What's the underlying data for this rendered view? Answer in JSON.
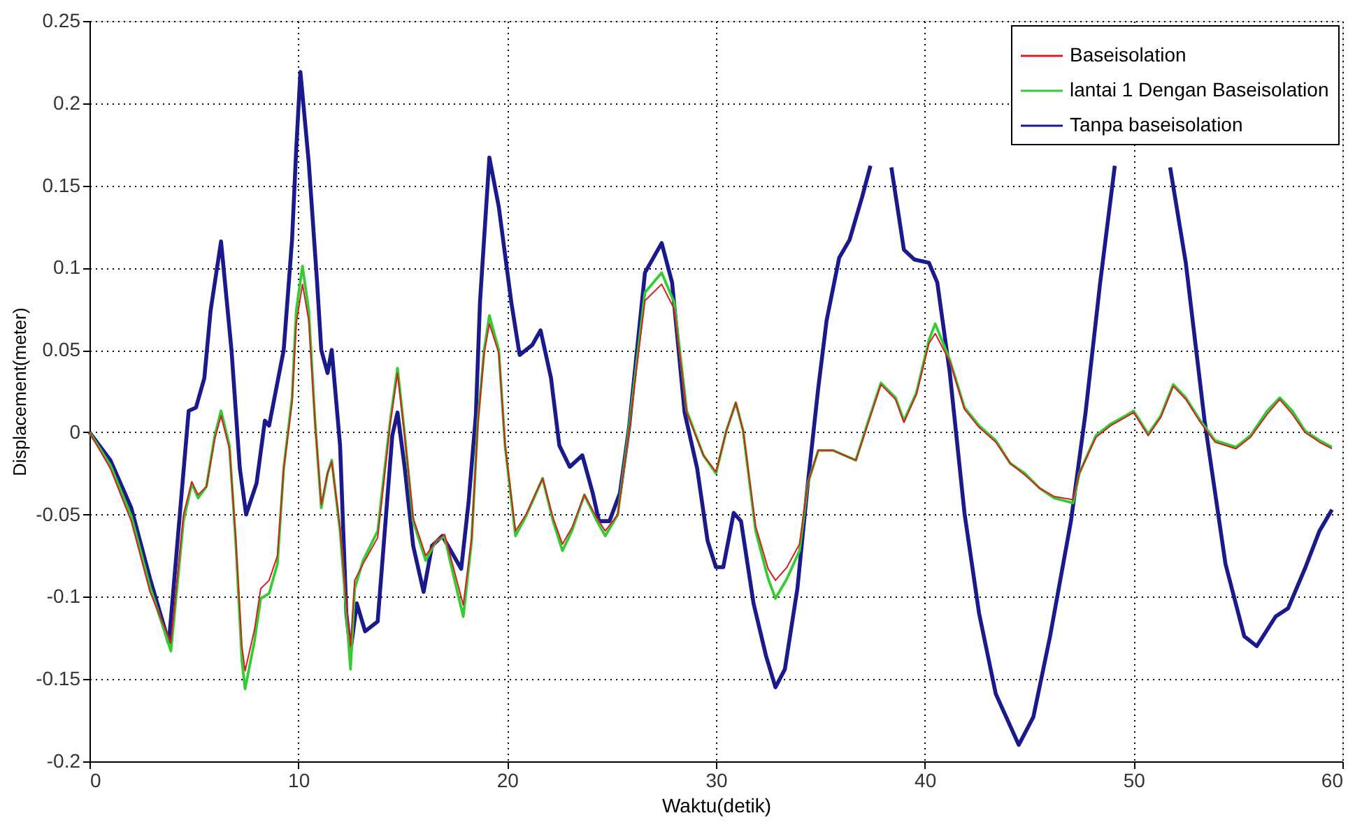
{
  "chart_data": {
    "type": "line",
    "xlabel": "Waktu(detik)",
    "ylabel": "Displacement(meter)",
    "xlim": [
      0,
      60
    ],
    "ylim": [
      -0.2,
      0.25
    ],
    "xticks": [
      0,
      10,
      20,
      30,
      40,
      50,
      60
    ],
    "yticks": [
      -0.2,
      -0.15,
      -0.1,
      -0.05,
      0,
      0.05,
      0.1,
      0.15,
      0.2,
      0.25
    ],
    "grid": true,
    "legend": "top right",
    "series": [
      {
        "name": "Baseisolation",
        "color": "#d42020",
        "x": [
          0,
          1,
          2,
          2.9,
          3.9,
          4.5,
          4.9,
          5.2,
          5.6,
          6.0,
          6.3,
          6.7,
          7.0,
          7.3,
          7.45,
          7.9,
          8.2,
          8.6,
          9.0,
          9.3,
          9.7,
          9.9,
          10.2,
          10.5,
          10.8,
          11.1,
          11.4,
          11.6,
          12.0,
          12.3,
          12.5,
          12.7,
          13.1,
          13.8,
          14.4,
          14.75,
          15.1,
          15.5,
          16.1,
          16.6,
          17.0,
          17.3,
          17.9,
          18.3,
          18.6,
          18.9,
          19.15,
          19.6,
          19.9,
          20.4,
          20.9,
          21.7,
          22.2,
          22.65,
          23.1,
          23.7,
          24.3,
          24.7,
          25.3,
          25.85,
          26.6,
          27.4,
          28.0,
          28.6,
          29.4,
          30.0,
          30.5,
          30.95,
          31.3,
          31.9,
          32.5,
          32.85,
          33.4,
          34.0,
          34.4,
          34.9,
          35.6,
          36.7,
          37.3,
          37.9,
          38.6,
          39.0,
          39.6,
          40.2,
          40.5,
          41.2,
          41.9,
          42.6,
          43.4,
          44.1,
          44.8,
          45.5,
          46.2,
          47.1,
          47.4,
          48.2,
          48.9,
          49.6,
          50.0,
          50.7,
          51.3,
          51.9,
          52.5,
          53.2,
          53.9,
          54.9,
          55.6,
          56.4,
          57.0,
          57.6,
          58.2,
          58.9,
          59.5
        ],
        "values": [
          0,
          -0.022,
          -0.054,
          -0.097,
          -0.128,
          -0.05,
          -0.03,
          -0.038,
          -0.033,
          -0.004,
          0.01,
          -0.01,
          -0.064,
          -0.13,
          -0.145,
          -0.12,
          -0.095,
          -0.09,
          -0.075,
          -0.022,
          0.018,
          0.066,
          0.09,
          0.068,
          0.006,
          -0.044,
          -0.025,
          -0.018,
          -0.058,
          -0.105,
          -0.13,
          -0.09,
          -0.08,
          -0.064,
          0.005,
          0.036,
          -0.003,
          -0.052,
          -0.075,
          -0.066,
          -0.062,
          -0.076,
          -0.105,
          -0.064,
          0.005,
          0.048,
          0.066,
          0.048,
          -0.008,
          -0.06,
          -0.05,
          -0.028,
          -0.052,
          -0.068,
          -0.058,
          -0.038,
          -0.052,
          -0.06,
          -0.05,
          0.003,
          0.08,
          0.09,
          0.075,
          0.012,
          -0.014,
          -0.024,
          0.001,
          0.018,
          0.001,
          -0.057,
          -0.083,
          -0.09,
          -0.082,
          -0.068,
          -0.031,
          -0.011,
          -0.011,
          -0.017,
          0.006,
          0.029,
          0.02,
          0.006,
          0.023,
          0.054,
          0.06,
          0.043,
          0.014,
          0.003,
          -0.006,
          -0.019,
          -0.026,
          -0.034,
          -0.039,
          -0.041,
          -0.025,
          -0.003,
          0.004,
          0.009,
          0.012,
          -0.002,
          0.009,
          0.028,
          0.02,
          0.006,
          -0.006,
          -0.01,
          -0.003,
          0.011,
          0.02,
          0.011,
          0.0,
          -0.006,
          -0.01
        ]
      },
      {
        "name": "lantai 1 Dengan Baseisolation",
        "color": "#33cc33",
        "x": [
          0,
          1,
          2,
          2.9,
          3.9,
          4.5,
          4.9,
          5.2,
          5.6,
          6.0,
          6.3,
          6.7,
          7.0,
          7.3,
          7.45,
          7.9,
          8.2,
          8.6,
          9.0,
          9.3,
          9.7,
          9.9,
          10.2,
          10.5,
          10.8,
          11.1,
          11.4,
          11.6,
          12.0,
          12.3,
          12.5,
          12.7,
          13.1,
          13.8,
          14.4,
          14.75,
          15.1,
          15.5,
          16.1,
          16.6,
          17.0,
          17.3,
          17.9,
          18.3,
          18.6,
          18.9,
          19.15,
          19.6,
          19.9,
          20.4,
          20.9,
          21.7,
          22.2,
          22.65,
          23.1,
          23.7,
          24.3,
          24.7,
          25.3,
          25.85,
          26.6,
          27.4,
          28.0,
          28.6,
          29.4,
          30.0,
          30.5,
          30.95,
          31.3,
          31.9,
          32.5,
          32.85,
          33.4,
          34.0,
          34.4,
          34.9,
          35.6,
          36.7,
          37.3,
          37.9,
          38.6,
          39.0,
          39.6,
          40.2,
          40.5,
          41.2,
          41.9,
          42.6,
          43.4,
          44.1,
          44.8,
          45.5,
          46.2,
          47.1,
          47.4,
          48.2,
          48.9,
          49.6,
          50.0,
          50.7,
          51.3,
          51.9,
          52.5,
          53.2,
          53.9,
          54.9,
          55.6,
          56.4,
          57.0,
          57.6,
          58.2,
          58.9,
          59.5
        ],
        "values": [
          0,
          -0.02,
          -0.051,
          -0.094,
          -0.133,
          -0.054,
          -0.031,
          -0.04,
          -0.033,
          -0.002,
          0.013,
          -0.008,
          -0.066,
          -0.139,
          -0.156,
          -0.127,
          -0.101,
          -0.098,
          -0.08,
          -0.022,
          0.021,
          0.074,
          0.101,
          0.074,
          0.007,
          -0.046,
          -0.025,
          -0.017,
          -0.06,
          -0.11,
          -0.144,
          -0.095,
          -0.078,
          -0.06,
          0.007,
          0.039,
          -0.002,
          -0.054,
          -0.078,
          -0.066,
          -0.063,
          -0.08,
          -0.112,
          -0.066,
          0.007,
          0.05,
          0.071,
          0.05,
          -0.008,
          -0.063,
          -0.051,
          -0.028,
          -0.054,
          -0.072,
          -0.06,
          -0.038,
          -0.054,
          -0.063,
          -0.05,
          0.004,
          0.085,
          0.097,
          0.079,
          0.013,
          -0.014,
          -0.025,
          0.001,
          0.018,
          0.001,
          -0.06,
          -0.089,
          -0.101,
          -0.089,
          -0.072,
          -0.031,
          -0.011,
          -0.011,
          -0.017,
          0.007,
          0.03,
          0.021,
          0.007,
          0.024,
          0.056,
          0.066,
          0.044,
          0.015,
          0.004,
          -0.005,
          -0.019,
          -0.025,
          -0.034,
          -0.04,
          -0.043,
          -0.025,
          -0.002,
          0.005,
          0.01,
          0.013,
          -0.001,
          0.01,
          0.029,
          0.021,
          0.007,
          -0.005,
          -0.009,
          -0.002,
          0.013,
          0.021,
          0.013,
          0.001,
          -0.005,
          -0.009
        ]
      },
      {
        "name": "Tanpa baseisolation",
        "color": "#1a1a8c",
        "x": [
          0,
          1,
          2,
          2.9,
          3.8,
          4.75,
          5.1,
          5.5,
          5.8,
          6.3,
          6.8,
          7.2,
          7.5,
          8.0,
          8.4,
          8.6,
          9.3,
          9.7,
          9.9,
          10.1,
          10.5,
          10.9,
          11.1,
          11.4,
          11.6,
          12.0,
          12.3,
          12.5,
          12.8,
          13.2,
          13.8,
          14.5,
          14.75,
          15.1,
          15.5,
          16.0,
          16.4,
          16.9,
          17.8,
          18.15,
          18.5,
          18.7,
          19.15,
          19.6,
          20.2,
          20.6,
          21.2,
          21.6,
          22.1,
          22.5,
          23.0,
          23.6,
          24.1,
          24.4,
          24.9,
          25.4,
          25.85,
          26.6,
          27.4,
          27.9,
          28.5,
          29.1,
          29.6,
          30.0,
          30.35,
          30.85,
          31.2,
          31.8,
          32.4,
          32.85,
          33.3,
          33.9,
          34.4,
          34.9,
          35.3,
          35.9,
          36.4,
          37.0,
          37.4,
          38.0,
          38.4,
          39.0,
          39.5,
          40.2,
          40.6,
          41.2,
          41.9,
          42.6,
          43.4,
          44.5,
          45.2,
          46.0,
          47.0,
          47.7,
          48.4,
          49.1,
          50.4,
          51.75,
          52.5,
          53.4,
          54.4,
          55.3,
          55.9,
          56.8,
          57.4,
          58.2,
          58.9,
          59.5
        ],
        "values": [
          0,
          -0.017,
          -0.046,
          -0.089,
          -0.128,
          0.013,
          0.015,
          0.033,
          0.074,
          0.116,
          0.05,
          -0.022,
          -0.05,
          -0.031,
          0.007,
          0.004,
          0.05,
          0.117,
          0.172,
          0.219,
          0.164,
          0.091,
          0.05,
          0.036,
          0.05,
          -0.008,
          -0.11,
          -0.133,
          -0.104,
          -0.121,
          -0.115,
          -0.002,
          0.012,
          -0.022,
          -0.069,
          -0.097,
          -0.069,
          -0.063,
          -0.083,
          -0.043,
          0.01,
          0.079,
          0.167,
          0.137,
          0.079,
          0.047,
          0.053,
          0.062,
          0.033,
          -0.008,
          -0.021,
          -0.014,
          -0.037,
          -0.054,
          -0.054,
          -0.037,
          0.004,
          0.097,
          0.115,
          0.091,
          0.012,
          -0.022,
          -0.066,
          -0.082,
          -0.082,
          -0.049,
          -0.054,
          -0.104,
          -0.136,
          -0.155,
          -0.144,
          -0.095,
          -0.031,
          0.027,
          0.068,
          0.106,
          0.117,
          0.143,
          0.162,
          null,
          0.161,
          0.111,
          0.105,
          0.103,
          0.091,
          0.036,
          -0.049,
          -0.11,
          -0.159,
          -0.19,
          -0.173,
          -0.124,
          -0.054,
          0.012,
          0.091,
          0.162,
          null,
          0.161,
          0.103,
          0.007,
          -0.08,
          -0.124,
          -0.13,
          -0.112,
          -0.107,
          -0.083,
          -0.06,
          -0.047
        ]
      }
    ]
  }
}
